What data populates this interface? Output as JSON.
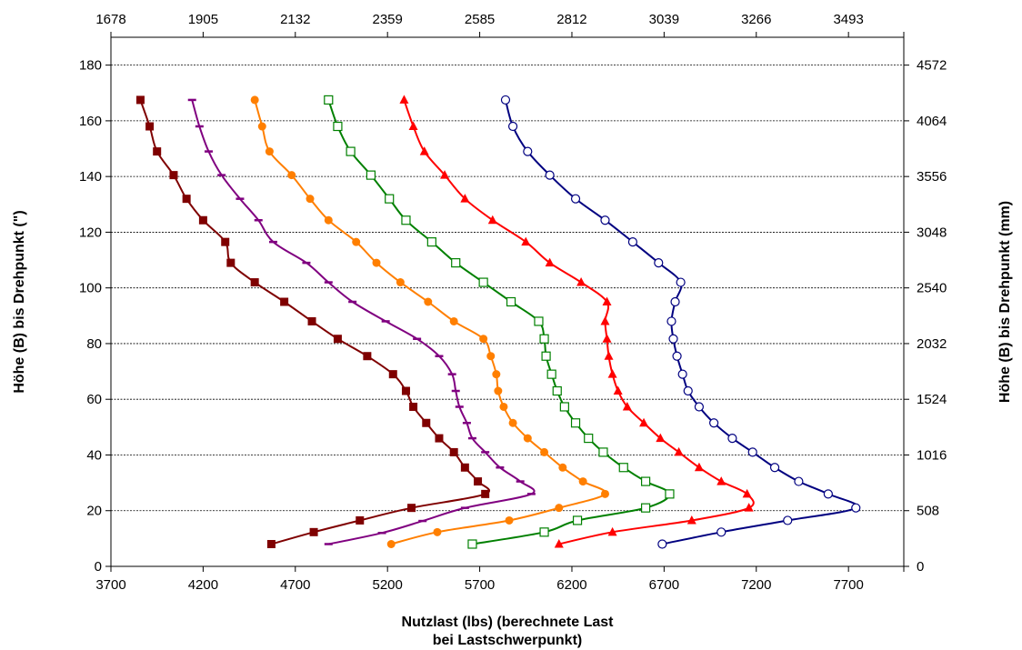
{
  "chart_data": {
    "type": "line",
    "title": "",
    "xlabel_lines": [
      "Nutzlast (lbs) (berechnete Last",
      "bei Lastschwerpunkt)"
    ],
    "ylabel": "Höhe (B) bis Drehpunkt (\")",
    "y2label": "Höhe (B) bis Drehpunkt (mm)",
    "xlim": [
      3700,
      8000
    ],
    "ylim": [
      0,
      190
    ],
    "x_ticks": [
      3700,
      4200,
      4700,
      5200,
      5700,
      6200,
      6700,
      7200,
      7700
    ],
    "y_ticks": [
      0,
      20,
      40,
      60,
      80,
      100,
      120,
      140,
      160,
      180
    ],
    "x2_ticks": [
      "1678",
      "1905",
      "2132",
      "2359",
      "2585",
      "2812",
      "3039",
      "3266",
      "3493"
    ],
    "y2_ticks": [
      "0",
      "508",
      "1016",
      "1524",
      "2032",
      "2540",
      "3048",
      "3556",
      "4064",
      "4572"
    ],
    "grid": "horizontal",
    "colors": {
      "gridline": "#000000",
      "axis": "#000000"
    },
    "series": [
      {
        "color": "#7f0000",
        "marker": "square-filled",
        "points": [
          [
            4570,
            8
          ],
          [
            4800,
            12.3
          ],
          [
            5050,
            16.5
          ],
          [
            5330,
            21
          ],
          [
            5730,
            26
          ],
          [
            5690,
            30.5
          ],
          [
            5620,
            35.5
          ],
          [
            5560,
            41
          ],
          [
            5480,
            46
          ],
          [
            5410,
            51.5
          ],
          [
            5340,
            57.3
          ],
          [
            5300,
            63
          ],
          [
            5230,
            69
          ],
          [
            5090,
            75.5
          ],
          [
            4930,
            81.7
          ],
          [
            4790,
            88
          ],
          [
            4640,
            95
          ],
          [
            4480,
            102
          ],
          [
            4350,
            109
          ],
          [
            4320,
            116.5
          ],
          [
            4200,
            124.3
          ],
          [
            4110,
            132
          ],
          [
            4040,
            140.5
          ],
          [
            3950,
            149
          ],
          [
            3910,
            158
          ],
          [
            3860,
            167.5
          ]
        ]
      },
      {
        "color": "#800080",
        "marker": "dash",
        "points": [
          [
            4880,
            8
          ],
          [
            5170,
            12
          ],
          [
            5390,
            16.3
          ],
          [
            5620,
            21
          ],
          [
            5980,
            26
          ],
          [
            5920,
            30.5
          ],
          [
            5810,
            35.5
          ],
          [
            5730,
            41
          ],
          [
            5660,
            46
          ],
          [
            5630,
            51.5
          ],
          [
            5590,
            57.3
          ],
          [
            5570,
            63
          ],
          [
            5550,
            69
          ],
          [
            5480,
            75.5
          ],
          [
            5360,
            81.7
          ],
          [
            5190,
            88
          ],
          [
            5010,
            95
          ],
          [
            4880,
            102
          ],
          [
            4760,
            109
          ],
          [
            4580,
            116.5
          ],
          [
            4500,
            124.3
          ],
          [
            4400,
            132
          ],
          [
            4300,
            140.5
          ],
          [
            4230,
            149
          ],
          [
            4180,
            158
          ],
          [
            4140,
            167.5
          ]
        ]
      },
      {
        "color": "#ff7f00",
        "marker": "circle-filled",
        "points": [
          [
            5220,
            8
          ],
          [
            5470,
            12.3
          ],
          [
            5860,
            16.5
          ],
          [
            6130,
            21
          ],
          [
            6380,
            26
          ],
          [
            6260,
            30.5
          ],
          [
            6150,
            35.5
          ],
          [
            6050,
            41
          ],
          [
            5960,
            46
          ],
          [
            5880,
            51.5
          ],
          [
            5830,
            57.3
          ],
          [
            5800,
            63
          ],
          [
            5790,
            69
          ],
          [
            5760,
            75.5
          ],
          [
            5720,
            81.7
          ],
          [
            5560,
            88
          ],
          [
            5420,
            95
          ],
          [
            5270,
            102
          ],
          [
            5140,
            109
          ],
          [
            5030,
            116.5
          ],
          [
            4880,
            124.3
          ],
          [
            4780,
            132
          ],
          [
            4680,
            140.5
          ],
          [
            4560,
            149
          ],
          [
            4520,
            158
          ],
          [
            4480,
            167.5
          ]
        ]
      },
      {
        "color": "#008000",
        "marker": "square-open",
        "points": [
          [
            5660,
            8
          ],
          [
            6050,
            12.3
          ],
          [
            6230,
            16.5
          ],
          [
            6600,
            21
          ],
          [
            6730,
            26
          ],
          [
            6600,
            30.5
          ],
          [
            6480,
            35.5
          ],
          [
            6370,
            41
          ],
          [
            6290,
            46
          ],
          [
            6220,
            51.5
          ],
          [
            6160,
            57.3
          ],
          [
            6120,
            63
          ],
          [
            6090,
            69
          ],
          [
            6060,
            75.5
          ],
          [
            6050,
            81.7
          ],
          [
            6020,
            88
          ],
          [
            5870,
            95
          ],
          [
            5720,
            102
          ],
          [
            5570,
            109
          ],
          [
            5440,
            116.5
          ],
          [
            5300,
            124.3
          ],
          [
            5210,
            132
          ],
          [
            5110,
            140.5
          ],
          [
            5000,
            149
          ],
          [
            4930,
            158
          ],
          [
            4880,
            167.5
          ]
        ]
      },
      {
        "color": "#ff0000",
        "marker": "triangle-filled",
        "points": [
          [
            6130,
            8
          ],
          [
            6420,
            12.3
          ],
          [
            6850,
            16.5
          ],
          [
            7160,
            21
          ],
          [
            7150,
            26
          ],
          [
            7010,
            30.5
          ],
          [
            6890,
            35.5
          ],
          [
            6780,
            41
          ],
          [
            6680,
            46
          ],
          [
            6590,
            51.5
          ],
          [
            6500,
            57.3
          ],
          [
            6450,
            63
          ],
          [
            6420,
            69
          ],
          [
            6400,
            75.5
          ],
          [
            6390,
            81.7
          ],
          [
            6380,
            88
          ],
          [
            6390,
            95
          ],
          [
            6250,
            102
          ],
          [
            6080,
            109
          ],
          [
            5950,
            116.5
          ],
          [
            5770,
            124.3
          ],
          [
            5620,
            132
          ],
          [
            5510,
            140.5
          ],
          [
            5400,
            149
          ],
          [
            5340,
            158
          ],
          [
            5290,
            167.5
          ]
        ]
      },
      {
        "color": "#000080",
        "marker": "circle-open",
        "points": [
          [
            6690,
            8
          ],
          [
            7010,
            12.3
          ],
          [
            7370,
            16.5
          ],
          [
            7740,
            21
          ],
          [
            7590,
            26
          ],
          [
            7430,
            30.5
          ],
          [
            7300,
            35.5
          ],
          [
            7180,
            41
          ],
          [
            7070,
            46
          ],
          [
            6970,
            51.5
          ],
          [
            6890,
            57.3
          ],
          [
            6830,
            63
          ],
          [
            6800,
            69
          ],
          [
            6770,
            75.5
          ],
          [
            6750,
            81.7
          ],
          [
            6740,
            88
          ],
          [
            6760,
            95
          ],
          [
            6790,
            102
          ],
          [
            6670,
            109
          ],
          [
            6530,
            116.5
          ],
          [
            6380,
            124.3
          ],
          [
            6220,
            132
          ],
          [
            6080,
            140.5
          ],
          [
            5960,
            149
          ],
          [
            5880,
            158
          ],
          [
            5840,
            167.5
          ]
        ]
      }
    ]
  }
}
